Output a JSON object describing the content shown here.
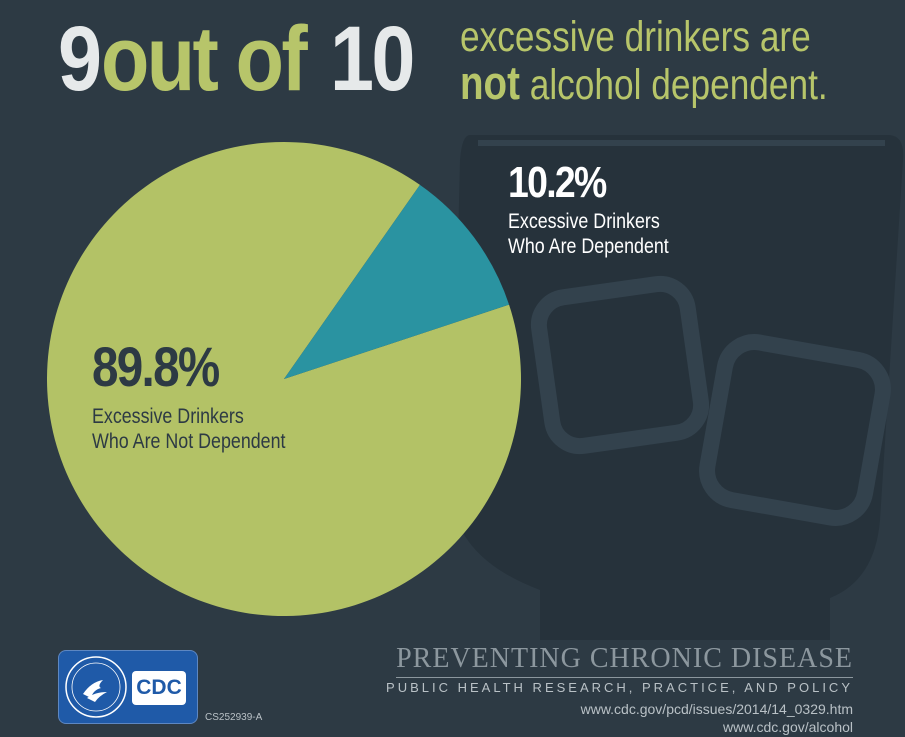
{
  "headline": {
    "part1": "9",
    "part2": "out of",
    "part3": "10",
    "sub_line1": "excessive drinkers are",
    "sub_emph": "not",
    "sub_line2": " alcohol dependent."
  },
  "colors": {
    "background": "#2d3a44",
    "glass": "#25313a",
    "not_dependent": "#b3c266",
    "dependent": "#2a93a1",
    "accent_white": "#e6e9ea"
  },
  "chart_data": {
    "type": "pie",
    "slices": [
      {
        "label": "Excessive Drinkers Who Are Dependent",
        "value": 10.2,
        "display": "10.2%",
        "line1": "Excessive Drinkers",
        "line2": "Who Are Dependent"
      },
      {
        "label": "Excessive Drinkers Who Are Not Dependent",
        "value": 89.8,
        "display": "89.8%",
        "line1": "Excessive Drinkers",
        "line2": "Who Are Not Dependent"
      }
    ]
  },
  "footer": {
    "journal_title": "PREVENTING CHRONIC DISEASE",
    "journal_subtitle": "PUBLIC HEALTH RESEARCH, PRACTICE, AND POLICY",
    "url1": "www.cdc.gov/pcd/issues/2014/14_0329.htm",
    "url2": "www.cdc.gov/alcohol",
    "code": "CS252939-A",
    "logo_text": "CDC",
    "logo_icon": "hhs-eagle-icon"
  }
}
